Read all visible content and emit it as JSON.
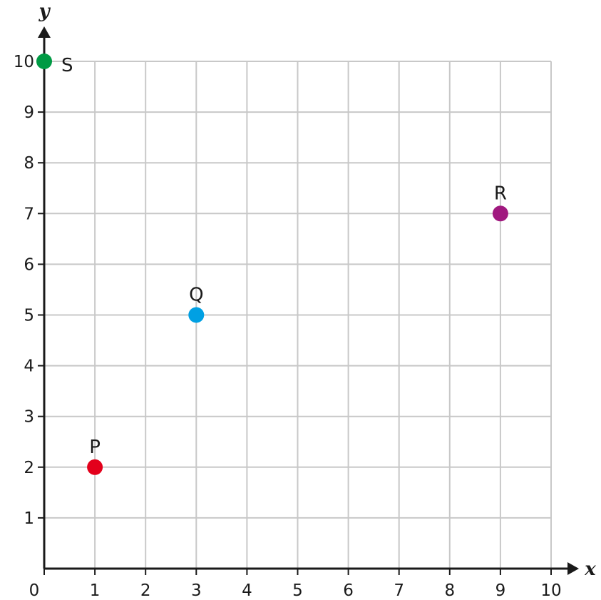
{
  "chart_data": {
    "type": "scatter",
    "xlabel": "x",
    "ylabel": "y",
    "xlim": [
      0,
      10
    ],
    "ylim": [
      0,
      10
    ],
    "x_ticks": [
      0,
      1,
      2,
      3,
      4,
      5,
      6,
      7,
      8,
      9,
      10
    ],
    "y_ticks": [
      1,
      2,
      3,
      4,
      5,
      6,
      7,
      8,
      9,
      10
    ],
    "origin_label": "0",
    "grid": true,
    "points": [
      {
        "label": "P",
        "x": 1,
        "y": 2,
        "color": "#e3001b",
        "label_pos": "above"
      },
      {
        "label": "Q",
        "x": 3,
        "y": 5,
        "color": "#00a0e3",
        "label_pos": "above"
      },
      {
        "label": "R",
        "x": 9,
        "y": 7,
        "color": "#a0197f",
        "label_pos": "above"
      },
      {
        "label": "S",
        "x": 0,
        "y": 10,
        "color": "#009a44",
        "label_pos": "right"
      }
    ]
  }
}
